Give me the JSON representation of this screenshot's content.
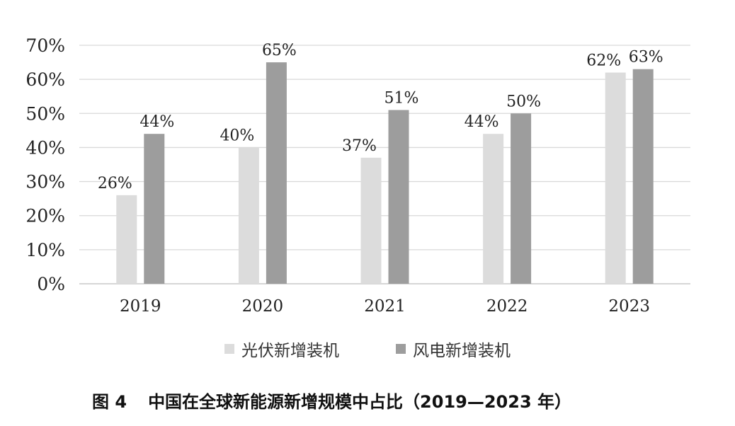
{
  "chart_data": {
    "type": "bar",
    "categories": [
      "2019",
      "2020",
      "2021",
      "2022",
      "2023"
    ],
    "series": [
      {
        "name": "光伏新增装机",
        "values": [
          26,
          40,
          37,
          44,
          62
        ],
        "labels": [
          "26%",
          "40%",
          "37%",
          "44%",
          "62%"
        ],
        "color": "#dcdcdc"
      },
      {
        "name": "风电新增装机",
        "values": [
          44,
          65,
          51,
          50,
          63
        ],
        "labels": [
          "44%",
          "65%",
          "51%",
          "50%",
          "63%"
        ],
        "color": "#9d9d9d"
      }
    ],
    "ylim": [
      0,
      70
    ],
    "yticks": [
      0,
      10,
      20,
      30,
      40,
      50,
      60,
      70
    ],
    "ytick_labels": [
      "0%",
      "10%",
      "20%",
      "30%",
      "40%",
      "50%",
      "60%",
      "70%"
    ],
    "grid": true,
    "legend_position": "bottom"
  },
  "caption": {
    "figure_number": "图 4",
    "title": "中国在全球新能源新增规模中占比（2019—2023 年）"
  }
}
